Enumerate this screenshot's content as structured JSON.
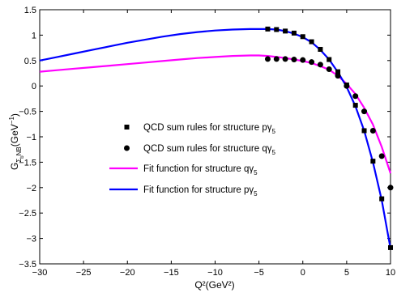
{
  "chart_data": {
    "type": "line",
    "xlabel": "Q²(GeV²)",
    "ylabel_main": "G",
    "ylabel_sub": "Σ",
    "ylabel_subsub": "b",
    "ylabel_sub2": "NB",
    "ylabel_unit": "(GeV",
    "ylabel_unit_exp": "−1",
    "ylabel_unit_close": ")",
    "xlim": [
      -30,
      10
    ],
    "ylim": [
      -3.5,
      1.5
    ],
    "xticks": [
      -30,
      -25,
      -20,
      -15,
      -10,
      -5,
      0,
      5,
      10
    ],
    "xtick_labels": [
      "−30",
      "−25",
      "−20",
      "−15",
      "−10",
      "−5",
      "0",
      "5",
      "10"
    ],
    "yticks": [
      1.5,
      1,
      0.5,
      0,
      -0.5,
      -1,
      -1.5,
      -2,
      -2.5,
      -3,
      -3.5
    ],
    "ytick_labels": [
      "1.5",
      "1",
      "0.5",
      "0",
      "−0.5",
      "−1",
      "−1.5",
      "−2",
      "−2.5",
      "−3",
      "−3.5"
    ],
    "grid": false,
    "legend_position": "center-left",
    "series": [
      {
        "name": "QCD sum rules for structure pγ5",
        "legend_text": "QCD sum rules for structure pγ",
        "legend_sub": "5",
        "kind": "markers",
        "marker": "square",
        "color": "#000000",
        "x": [
          -4,
          -3,
          -2,
          -1,
          0,
          1,
          2,
          3,
          4,
          5,
          6,
          7,
          8,
          9,
          10
        ],
        "y": [
          1.12,
          1.11,
          1.08,
          1.04,
          0.97,
          0.87,
          0.72,
          0.52,
          0.28,
          0.02,
          -0.38,
          -0.88,
          -1.48,
          -2.22,
          -3.18
        ]
      },
      {
        "name": "QCD sum rules for structure qγ5",
        "legend_text": "QCD sum rules for structure qγ",
        "legend_sub": "5",
        "kind": "markers",
        "marker": "circle",
        "color": "#000000",
        "x": [
          -4,
          -3,
          -2,
          -1,
          0,
          1,
          2,
          3,
          4,
          5,
          6,
          7,
          8,
          9,
          10
        ],
        "y": [
          0.53,
          0.53,
          0.53,
          0.52,
          0.51,
          0.47,
          0.42,
          0.33,
          0.2,
          0.0,
          -0.2,
          -0.5,
          -0.88,
          -1.38,
          -2.0
        ]
      },
      {
        "name": "Fit function for structure qγ5",
        "legend_text": "Fit function for structure qγ",
        "legend_sub": "5",
        "kind": "line",
        "color": "#ff00ff",
        "x": [
          -30,
          -28,
          -26,
          -24,
          -22,
          -20,
          -18,
          -16,
          -14,
          -12,
          -10,
          -8,
          -6,
          -5,
          -4,
          -3,
          -2,
          -1,
          0,
          1,
          2,
          3,
          4,
          5,
          6,
          7,
          8,
          9,
          10
        ],
        "y": [
          0.28,
          0.31,
          0.34,
          0.37,
          0.4,
          0.43,
          0.46,
          0.49,
          0.52,
          0.55,
          0.57,
          0.59,
          0.6,
          0.6,
          0.59,
          0.57,
          0.55,
          0.52,
          0.49,
          0.45,
          0.39,
          0.32,
          0.2,
          0.04,
          -0.16,
          -0.43,
          -0.76,
          -1.2,
          -1.72
        ]
      },
      {
        "name": "Fit function for structure pγ5",
        "legend_text": "Fit function for structure pγ",
        "legend_sub": "5",
        "kind": "line",
        "color": "#0000ff",
        "x": [
          -30,
          -28,
          -26,
          -24,
          -22,
          -20,
          -18,
          -16,
          -14,
          -12,
          -10,
          -8,
          -6,
          -5,
          -4,
          -3,
          -2,
          -1,
          0,
          1,
          2,
          3,
          4,
          5,
          6,
          7,
          8,
          9,
          10
        ],
        "y": [
          0.5,
          0.57,
          0.64,
          0.71,
          0.78,
          0.85,
          0.91,
          0.97,
          1.02,
          1.06,
          1.09,
          1.11,
          1.12,
          1.12,
          1.12,
          1.11,
          1.08,
          1.03,
          0.96,
          0.86,
          0.71,
          0.52,
          0.27,
          -0.02,
          -0.4,
          -0.88,
          -1.5,
          -2.25,
          -3.2
        ]
      }
    ]
  }
}
